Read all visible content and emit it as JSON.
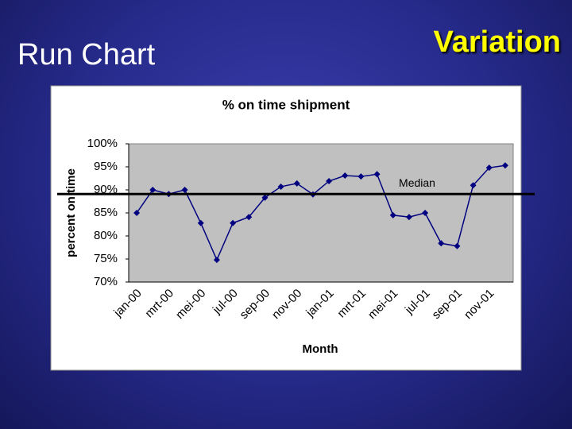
{
  "slide_title": "Run Chart",
  "slide_heading": "Variation",
  "chart_data": {
    "type": "line",
    "title": "% on time shipment",
    "x_label": "Month",
    "y_label": "percent on time",
    "categories": [
      "jan-00",
      null,
      "mrt-00",
      null,
      "mei-00",
      null,
      "jul-00",
      null,
      "sep-00",
      null,
      "nov-00",
      null,
      "jan-01",
      null,
      "mrt-01",
      null,
      "mei-01",
      null,
      "jul-01",
      null,
      "sep-01",
      null,
      "nov-01",
      null
    ],
    "series": [
      {
        "name": "% on time shipment",
        "color": "#000080",
        "values": [
          85.0,
          90.0,
          89.1,
          90.0,
          82.8,
          74.8,
          82.8,
          84.1,
          88.3,
          90.7,
          91.4,
          89.0,
          91.9,
          93.1,
          92.9,
          93.4,
          84.5,
          84.1,
          85.0,
          78.4,
          77.8,
          91.0,
          94.8,
          95.3
        ]
      }
    ],
    "median": {
      "value": 89.1,
      "label": "Median"
    },
    "ylim": [
      70,
      100
    ],
    "yticks": [
      {
        "value": 70,
        "label": "70%"
      },
      {
        "value": 75,
        "label": "75%"
      },
      {
        "value": 80,
        "label": "80%"
      },
      {
        "value": 85,
        "label": "85%"
      },
      {
        "value": 90,
        "label": "90%"
      },
      {
        "value": 95,
        "label": "95%"
      },
      {
        "value": 100,
        "label": "100%"
      }
    ],
    "plot_background": "#c0c0c0",
    "grid": false
  }
}
